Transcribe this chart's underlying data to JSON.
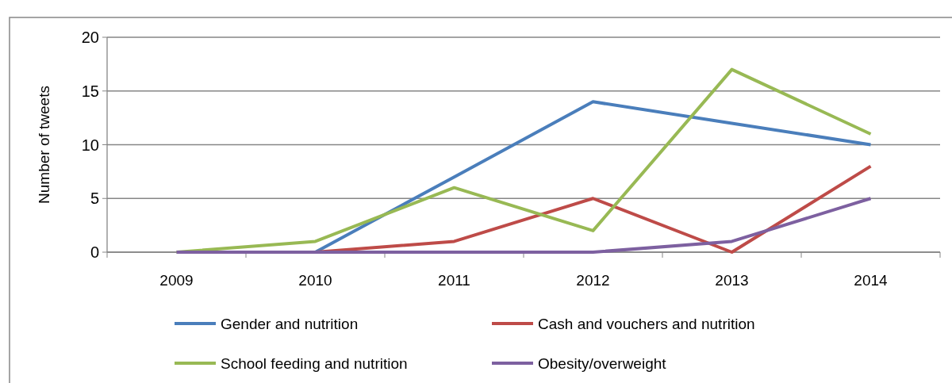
{
  "chart_data": {
    "type": "line",
    "ylabel": "Number of tweets",
    "categories": [
      "2009",
      "2010",
      "2011",
      "2012",
      "2013",
      "2014"
    ],
    "ylim": [
      0,
      20
    ],
    "yticks": [
      0,
      5,
      10,
      15,
      20
    ],
    "grid": "y",
    "legend": "bottom",
    "marker": "none",
    "line_style": "solid",
    "series": [
      {
        "name": "Gender and nutrition",
        "color": "#4a7ebb",
        "values": [
          null,
          0,
          7,
          14,
          12,
          10
        ]
      },
      {
        "name": "Cash and vouchers and nutrition",
        "color": "#be4b48",
        "values": [
          null,
          0,
          1,
          5,
          0,
          8
        ]
      },
      {
        "name": "School feeding and nutrition",
        "color": "#98b954",
        "values": [
          0,
          1,
          6,
          2,
          17,
          11
        ]
      },
      {
        "name": "Obesity/overweight",
        "color": "#7d60a0",
        "values": [
          0,
          0,
          0,
          0,
          1,
          5
        ]
      }
    ]
  }
}
